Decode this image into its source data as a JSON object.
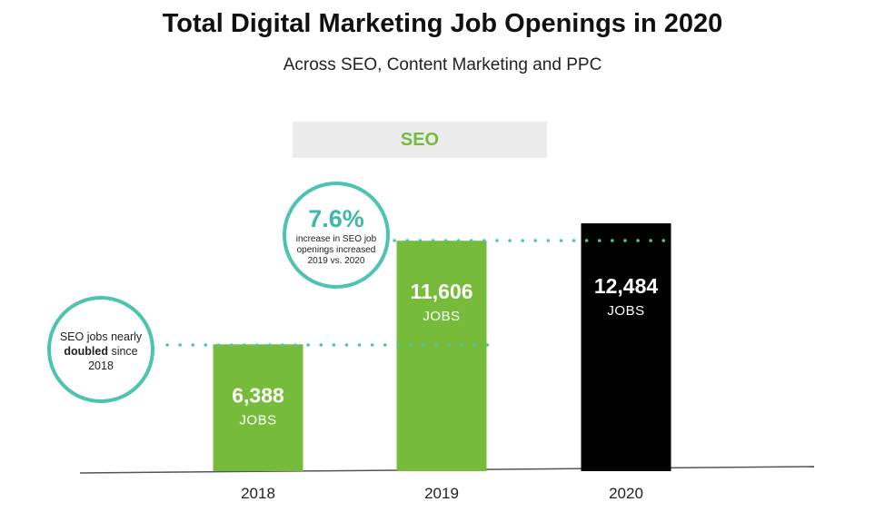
{
  "title": "Total Digital Marketing Job Openings in 2020",
  "subtitle": "Across SEO, Content Marketing and PPC",
  "segment_label": "SEO",
  "colors": {
    "green": "#76bc3a",
    "black": "#000000",
    "teal": "#4dc4b0"
  },
  "annotations": {
    "doubled": {
      "line1": "SEO jobs nearly",
      "bold": "doubled",
      "rest": " since",
      "line3": "2018"
    },
    "increase": {
      "pct": "7.6%",
      "line1": "increase in SEO job",
      "line2": "openings increased",
      "line3": "2019 vs. 2020"
    }
  },
  "chart_data": {
    "type": "bar",
    "categories": [
      "2018",
      "2019",
      "2020"
    ],
    "values": [
      6388,
      11606,
      12484
    ],
    "value_labels": [
      "6,388",
      "11,606",
      "12,484"
    ],
    "unit_label": "JOBS",
    "bar_colors": [
      "#76bc3a",
      "#76bc3a",
      "#000000"
    ],
    "title": "Total Digital Marketing Job Openings in 2020",
    "xlabel": "",
    "ylabel": "",
    "grid": false
  }
}
